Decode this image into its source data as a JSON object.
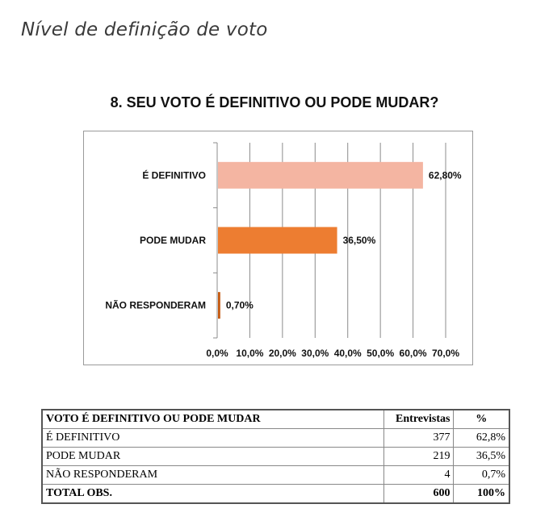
{
  "page_heading": "Nível de definição de voto",
  "chart_data": {
    "type": "bar",
    "orientation": "horizontal",
    "title": "8. SEU VOTO É DEFINITIVO OU PODE MUDAR?",
    "categories": [
      "É DEFINITIVO",
      "PODE MUDAR",
      "NÃO RESPONDERAM"
    ],
    "values": [
      62.8,
      36.5,
      0.7
    ],
    "value_labels": [
      "62,80%",
      "36,50%",
      "0,70%"
    ],
    "bar_colors": [
      "#f4b5a2",
      "#ed7d31",
      "#c55a11"
    ],
    "xlim": [
      0,
      70
    ],
    "x_ticks": [
      0,
      10,
      20,
      30,
      40,
      50,
      60,
      70
    ],
    "x_tick_labels": [
      "0,0%",
      "10,0%",
      "20,0%",
      "30,0%",
      "40,0%",
      "50,0%",
      "60,0%",
      "70,0%"
    ],
    "grid": true,
    "legend": "none"
  },
  "table": {
    "headers": [
      "VOTO É DEFINITIVO OU PODE MUDAR",
      "Entrevistas",
      "%"
    ],
    "rows": [
      [
        "É DEFINITIVO",
        "377",
        "62,8%"
      ],
      [
        "PODE MUDAR",
        "219",
        "36,5%"
      ],
      [
        "NÃO RESPONDERAM",
        "4",
        "0,7%"
      ]
    ],
    "total": [
      "TOTAL OBS.",
      "600",
      "100%"
    ]
  }
}
